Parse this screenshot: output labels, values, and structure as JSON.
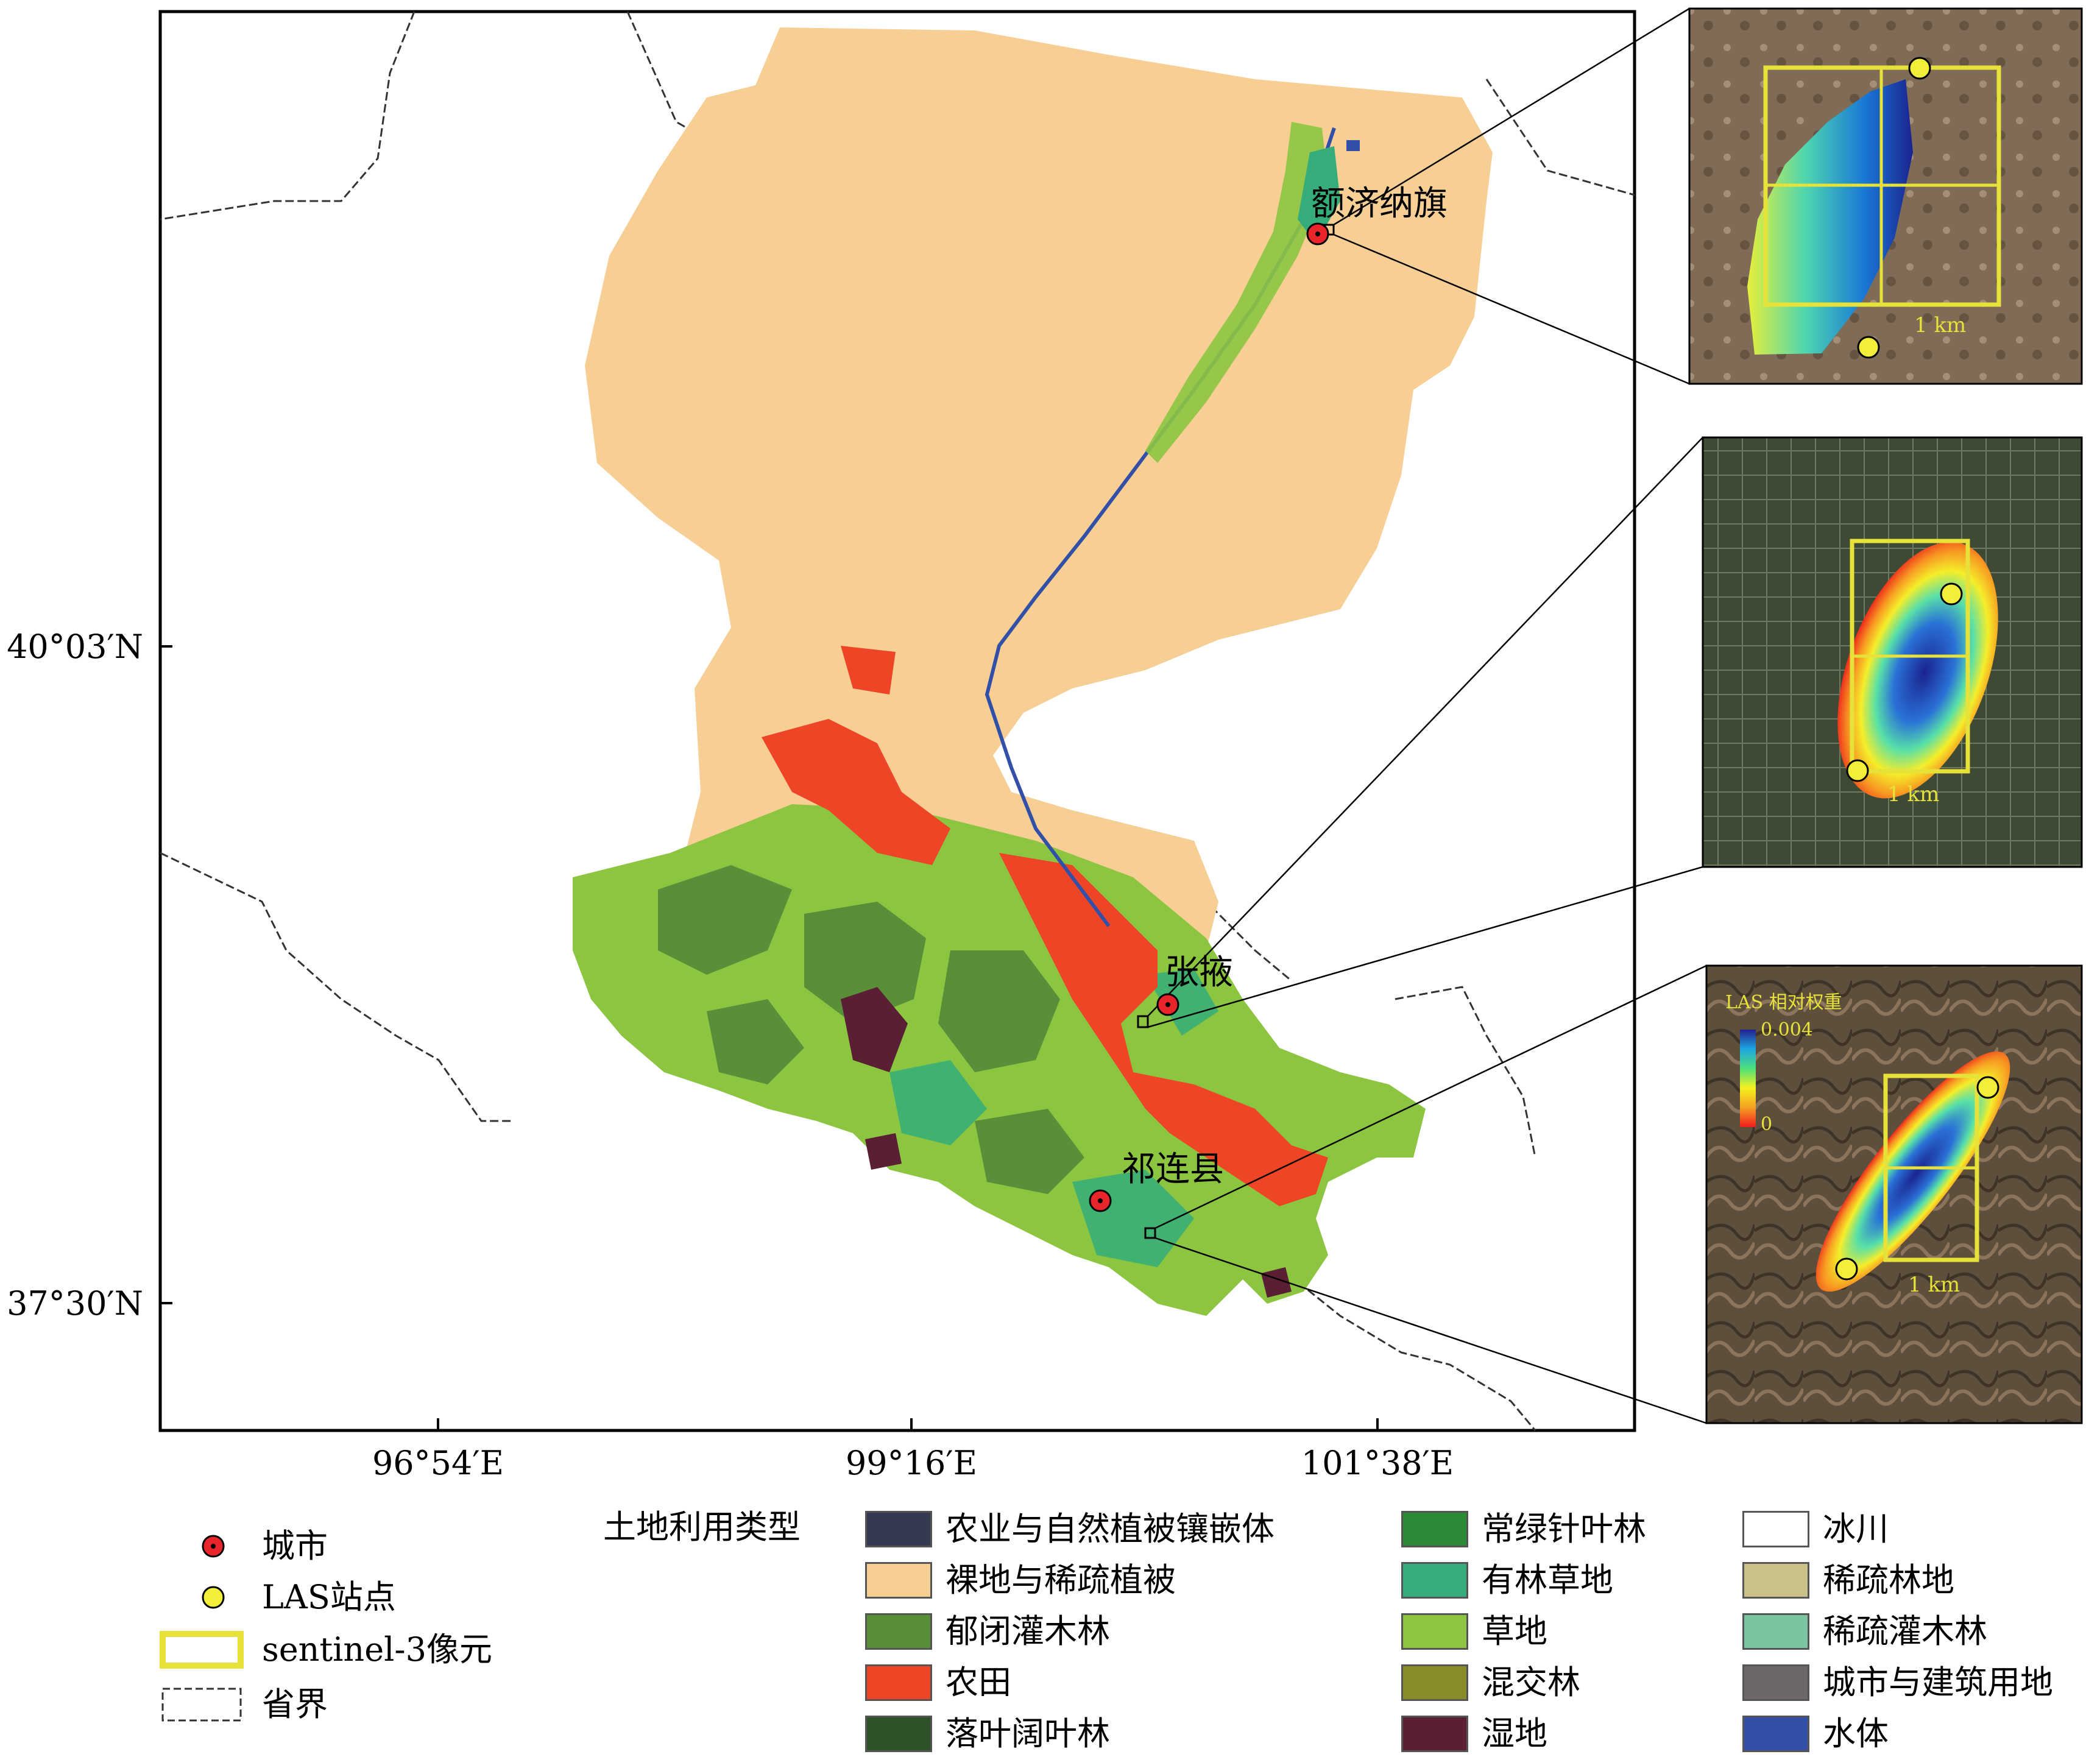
{
  "map": {
    "lat_labels": [
      "40°03′N",
      "37°30′N"
    ],
    "lon_labels": [
      "96°54′E",
      "99°16′E",
      "101°38′E"
    ],
    "cities": [
      {
        "name": "额济纳旗"
      },
      {
        "name": "张掖"
      },
      {
        "name": "祁连县"
      }
    ]
  },
  "insets": [
    {
      "scale_label": "1 km"
    },
    {
      "scale_label": "1 km"
    },
    {
      "scale_label": "1 km",
      "colorbar_title": "LAS 相对权重",
      "colorbar_max": "0.004",
      "colorbar_min": "0"
    }
  ],
  "legend_symbols": [
    {
      "label": "城市",
      "icon": "red-dot-icon"
    },
    {
      "label": "LAS站点",
      "icon": "yellow-dot-icon"
    },
    {
      "label": "sentinel-3像元",
      "icon": "yellow-rect-icon"
    },
    {
      "label": "省界",
      "icon": "dashed-rect-icon"
    }
  ],
  "legend_landuse": {
    "title": "土地利用类型",
    "classes": [
      {
        "label": "农业与自然植被镶嵌体",
        "color": "#353a52"
      },
      {
        "label": "裸地与稀疏植被",
        "color": "#f7cf94"
      },
      {
        "label": "郁闭灌木林",
        "color": "#5a8f3a"
      },
      {
        "label": "农田",
        "color": "#ee4527"
      },
      {
        "label": "落叶阔叶林",
        "color": "#2e5228"
      },
      {
        "label": "常绿针叶林",
        "color": "#2b8a35"
      },
      {
        "label": "有林草地",
        "color": "#34ad7a"
      },
      {
        "label": "草地",
        "color": "#8cc540"
      },
      {
        "label": "混交林",
        "color": "#8a8c2c"
      },
      {
        "label": "湿地",
        "color": "#5a1f34"
      },
      {
        "label": "冰川",
        "color": "#ffffff"
      },
      {
        "label": "稀疏林地",
        "color": "#c9c08a"
      },
      {
        "label": "稀疏灌木林",
        "color": "#7cc4a0"
      },
      {
        "label": "城市与建筑用地",
        "color": "#6e6768"
      },
      {
        "label": "水体",
        "color": "#3250a8"
      }
    ]
  }
}
